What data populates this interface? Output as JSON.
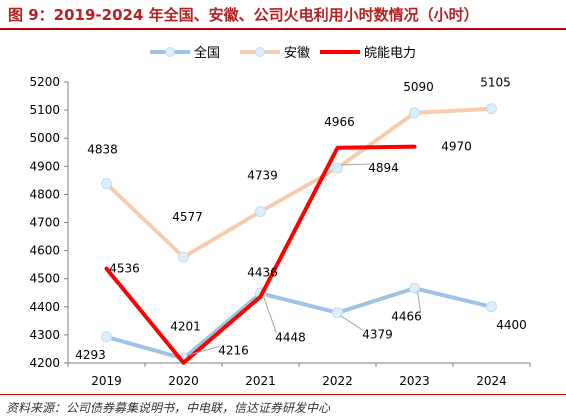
{
  "title": "图 9：2019-2024 年全国、安徽、公司火电利用小时数情况（小时）",
  "source": "资料来源：公司债券募集说明书，中电联，信达证券研发中心",
  "colors": {
    "title": "#b22222",
    "border": "#c00000",
    "national": "#9dc3e6",
    "anhui": "#f8cbad",
    "company": "#ff0000"
  },
  "chart_data": {
    "type": "line",
    "categories": [
      "2019",
      "2020",
      "2021",
      "2022",
      "2023",
      "2024"
    ],
    "ylim": [
      4200,
      5200
    ],
    "yticks": [
      "4200",
      "4300",
      "4400",
      "4500",
      "4600",
      "4700",
      "4800",
      "4900",
      "5000",
      "5100",
      "5200"
    ],
    "grid": false,
    "legend": "top",
    "series": [
      {
        "name": "全国",
        "values": [
          4293,
          4216,
          4448,
          4379,
          4466,
          4400
        ]
      },
      {
        "name": "安徽",
        "values": [
          4838,
          4577,
          4739,
          4894,
          5090,
          5105
        ]
      },
      {
        "name": "皖能电力",
        "values": [
          4536,
          4201,
          4436,
          4966,
          4970,
          null
        ]
      }
    ]
  }
}
